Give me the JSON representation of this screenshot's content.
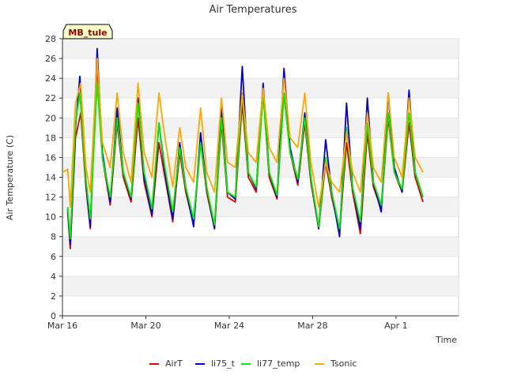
{
  "chart_data": {
    "type": "line",
    "title": "Air Temperatures",
    "xlabel": "Time",
    "ylabel": "Air Temperature (C)",
    "site_label": "MB_tule",
    "ylim": [
      0,
      28
    ],
    "yticks": [
      0,
      2,
      4,
      6,
      8,
      10,
      12,
      14,
      16,
      18,
      20,
      22,
      24,
      26,
      28
    ],
    "xlim": [
      "2024-03-16",
      "2024-04-04"
    ],
    "xticks": [
      {
        "date": "2024-03-16",
        "label": "Mar 16"
      },
      {
        "date": "2024-03-20",
        "label": "Mar 20"
      },
      {
        "date": "2024-03-24",
        "label": "Mar 24"
      },
      {
        "date": "2024-03-28",
        "label": "Mar 28"
      },
      {
        "date": "2024-04-01",
        "label": "Apr 1"
      }
    ],
    "grid": "horizontal bands",
    "legend_position": "bottom",
    "series": [
      {
        "name": "AirT",
        "color": "#dd0000",
        "points": [
          [
            "2024-03-16 06:00",
            10.5
          ],
          [
            "2024-03-16 09:00",
            6.8
          ],
          [
            "2024-03-16 15:00",
            18.0
          ],
          [
            "2024-03-16 21:00",
            20.5
          ],
          [
            "2024-03-17 03:00",
            13.0
          ],
          [
            "2024-03-17 08:00",
            8.8
          ],
          [
            "2024-03-17 16:00",
            25.5
          ],
          [
            "2024-03-17 22:00",
            16.0
          ],
          [
            "2024-03-18 07:00",
            11.2
          ],
          [
            "2024-03-18 15:00",
            19.5
          ],
          [
            "2024-03-18 22:00",
            14.0
          ],
          [
            "2024-03-19 07:00",
            11.5
          ],
          [
            "2024-03-19 15:00",
            20.0
          ],
          [
            "2024-03-19 22:00",
            13.5
          ],
          [
            "2024-03-20 07:00",
            10.0
          ],
          [
            "2024-03-20 15:00",
            17.5
          ],
          [
            "2024-03-20 22:00",
            14.0
          ],
          [
            "2024-03-21 07:00",
            9.5
          ],
          [
            "2024-03-21 15:00",
            16.5
          ],
          [
            "2024-03-21 22:00",
            12.5
          ],
          [
            "2024-03-22 07:00",
            9.2
          ],
          [
            "2024-03-22 15:00",
            17.5
          ],
          [
            "2024-03-22 22:00",
            12.5
          ],
          [
            "2024-03-23 07:00",
            8.8
          ],
          [
            "2024-03-23 15:00",
            19.5
          ],
          [
            "2024-03-23 22:00",
            12.0
          ],
          [
            "2024-03-24 07:00",
            11.5
          ],
          [
            "2024-03-24 15:00",
            21.5
          ],
          [
            "2024-03-24 22:00",
            14.0
          ],
          [
            "2024-03-25 07:00",
            12.5
          ],
          [
            "2024-03-25 15:00",
            22.5
          ],
          [
            "2024-03-25 22:00",
            14.0
          ],
          [
            "2024-03-26 07:00",
            11.8
          ],
          [
            "2024-03-26 15:00",
            22.5
          ],
          [
            "2024-03-26 22:00",
            16.5
          ],
          [
            "2024-03-27 07:00",
            13.2
          ],
          [
            "2024-03-27 15:00",
            19.5
          ],
          [
            "2024-03-27 22:00",
            13.5
          ],
          [
            "2024-03-28 07:00",
            8.8
          ],
          [
            "2024-03-28 15:00",
            15.5
          ],
          [
            "2024-03-28 22:00",
            12.0
          ],
          [
            "2024-03-29 07:00",
            8.5
          ],
          [
            "2024-03-29 15:00",
            17.5
          ],
          [
            "2024-03-29 22:00",
            12.5
          ],
          [
            "2024-03-30 07:00",
            8.3
          ],
          [
            "2024-03-30 15:00",
            18.5
          ],
          [
            "2024-03-30 22:00",
            13.0
          ],
          [
            "2024-03-31 07:00",
            10.8
          ],
          [
            "2024-03-31 15:00",
            20.0
          ],
          [
            "2024-03-31 22:00",
            14.5
          ],
          [
            "2024-04-01 07:00",
            12.5
          ],
          [
            "2024-04-01 15:00",
            19.5
          ],
          [
            "2024-04-01 22:00",
            14.0
          ],
          [
            "2024-04-02 07:00",
            11.5
          ]
        ]
      },
      {
        "name": "li75_t",
        "color": "#0000cc",
        "points": [
          [
            "2024-03-16 06:00",
            10.8
          ],
          [
            "2024-03-16 09:00",
            7.2
          ],
          [
            "2024-03-16 15:00",
            19.0
          ],
          [
            "2024-03-16 20:00",
            24.2
          ],
          [
            "2024-03-17 03:00",
            13.5
          ],
          [
            "2024-03-17 08:00",
            9.0
          ],
          [
            "2024-03-17 16:00",
            27.0
          ],
          [
            "2024-03-17 22:00",
            16.5
          ],
          [
            "2024-03-18 07:00",
            11.5
          ],
          [
            "2024-03-18 15:00",
            21.0
          ],
          [
            "2024-03-18 22:00",
            14.5
          ],
          [
            "2024-03-19 07:00",
            11.8
          ],
          [
            "2024-03-19 15:00",
            22.0
          ],
          [
            "2024-03-19 22:00",
            14.0
          ],
          [
            "2024-03-20 07:00",
            10.2
          ],
          [
            "2024-03-20 15:00",
            19.5
          ],
          [
            "2024-03-20 22:00",
            14.5
          ],
          [
            "2024-03-21 07:00",
            9.8
          ],
          [
            "2024-03-21 15:00",
            17.5
          ],
          [
            "2024-03-21 22:00",
            13.0
          ],
          [
            "2024-03-22 07:00",
            9.0
          ],
          [
            "2024-03-22 15:00",
            18.5
          ],
          [
            "2024-03-22 22:00",
            13.0
          ],
          [
            "2024-03-23 07:00",
            8.8
          ],
          [
            "2024-03-23 15:00",
            21.0
          ],
          [
            "2024-03-23 22:00",
            12.5
          ],
          [
            "2024-03-24 07:00",
            11.8
          ],
          [
            "2024-03-24 15:00",
            25.2
          ],
          [
            "2024-03-24 22:00",
            14.5
          ],
          [
            "2024-03-25 07:00",
            12.8
          ],
          [
            "2024-03-25 15:00",
            23.5
          ],
          [
            "2024-03-25 22:00",
            14.5
          ],
          [
            "2024-03-26 07:00",
            12.0
          ],
          [
            "2024-03-26 15:00",
            25.0
          ],
          [
            "2024-03-26 22:00",
            17.0
          ],
          [
            "2024-03-27 07:00",
            13.5
          ],
          [
            "2024-03-27 15:00",
            20.5
          ],
          [
            "2024-03-27 22:00",
            14.0
          ],
          [
            "2024-03-28 07:00",
            8.8
          ],
          [
            "2024-03-28 15:00",
            17.8
          ],
          [
            "2024-03-28 22:00",
            12.5
          ],
          [
            "2024-03-29 07:00",
            8.0
          ],
          [
            "2024-03-29 15:00",
            21.5
          ],
          [
            "2024-03-29 22:00",
            13.0
          ],
          [
            "2024-03-30 07:00",
            8.8
          ],
          [
            "2024-03-30 15:00",
            22.0
          ],
          [
            "2024-03-30 22:00",
            13.5
          ],
          [
            "2024-03-31 07:00",
            10.5
          ],
          [
            "2024-03-31 15:00",
            22.5
          ],
          [
            "2024-03-31 22:00",
            15.0
          ],
          [
            "2024-04-01 07:00",
            12.5
          ],
          [
            "2024-04-01 15:00",
            22.8
          ],
          [
            "2024-04-01 22:00",
            14.5
          ],
          [
            "2024-04-02 07:00",
            12.0
          ]
        ]
      },
      {
        "name": "li77_temp",
        "color": "#00ee00",
        "points": [
          [
            "2024-03-16 06:00",
            11.0
          ],
          [
            "2024-03-16 09:00",
            7.8
          ],
          [
            "2024-03-16 15:00",
            19.5
          ],
          [
            "2024-03-16 20:00",
            22.5
          ],
          [
            "2024-03-17 03:00",
            13.8
          ],
          [
            "2024-03-17 08:00",
            9.8
          ],
          [
            "2024-03-17 16:00",
            23.5
          ],
          [
            "2024-03-17 22:00",
            16.0
          ],
          [
            "2024-03-18 07:00",
            12.0
          ],
          [
            "2024-03-18 15:00",
            20.0
          ],
          [
            "2024-03-18 22:00",
            14.5
          ],
          [
            "2024-03-19 07:00",
            12.0
          ],
          [
            "2024-03-19 15:00",
            21.5
          ],
          [
            "2024-03-19 22:00",
            14.5
          ],
          [
            "2024-03-20 07:00",
            10.8
          ],
          [
            "2024-03-20 15:00",
            19.5
          ],
          [
            "2024-03-20 22:00",
            15.0
          ],
          [
            "2024-03-21 07:00",
            10.5
          ],
          [
            "2024-03-21 15:00",
            17.0
          ],
          [
            "2024-03-21 22:00",
            13.0
          ],
          [
            "2024-03-22 07:00",
            9.8
          ],
          [
            "2024-03-22 15:00",
            17.5
          ],
          [
            "2024-03-22 22:00",
            13.0
          ],
          [
            "2024-03-23 07:00",
            9.2
          ],
          [
            "2024-03-23 15:00",
            20.0
          ],
          [
            "2024-03-23 22:00",
            12.5
          ],
          [
            "2024-03-24 07:00",
            12.0
          ],
          [
            "2024-03-24 15:00",
            22.5
          ],
          [
            "2024-03-24 22:00",
            14.5
          ],
          [
            "2024-03-25 07:00",
            13.0
          ],
          [
            "2024-03-25 15:00",
            22.5
          ],
          [
            "2024-03-25 22:00",
            14.5
          ],
          [
            "2024-03-26 07:00",
            12.2
          ],
          [
            "2024-03-26 15:00",
            22.5
          ],
          [
            "2024-03-26 22:00",
            16.5
          ],
          [
            "2024-03-27 07:00",
            13.8
          ],
          [
            "2024-03-27 15:00",
            20.0
          ],
          [
            "2024-03-27 22:00",
            14.0
          ],
          [
            "2024-03-28 07:00",
            9.0
          ],
          [
            "2024-03-28 15:00",
            16.0
          ],
          [
            "2024-03-28 22:00",
            12.5
          ],
          [
            "2024-03-29 07:00",
            8.8
          ],
          [
            "2024-03-29 15:00",
            19.0
          ],
          [
            "2024-03-29 22:00",
            13.0
          ],
          [
            "2024-03-30 07:00",
            9.5
          ],
          [
            "2024-03-30 15:00",
            19.5
          ],
          [
            "2024-03-30 22:00",
            13.5
          ],
          [
            "2024-03-31 07:00",
            11.2
          ],
          [
            "2024-03-31 15:00",
            20.5
          ],
          [
            "2024-03-31 22:00",
            14.5
          ],
          [
            "2024-04-01 07:00",
            12.8
          ],
          [
            "2024-04-01 15:00",
            20.5
          ],
          [
            "2024-04-01 22:00",
            14.5
          ],
          [
            "2024-04-02 07:00",
            12.0
          ]
        ]
      },
      {
        "name": "Tsonic",
        "color": "#ffa500",
        "points": [
          [
            "2024-03-16 00:00",
            14.5
          ],
          [
            "2024-03-16 06:00",
            14.8
          ],
          [
            "2024-03-16 09:00",
            11.0
          ],
          [
            "2024-03-16 15:00",
            21.5
          ],
          [
            "2024-03-16 21:00",
            23.5
          ],
          [
            "2024-03-17 03:00",
            15.0
          ],
          [
            "2024-03-17 08:00",
            12.5
          ],
          [
            "2024-03-17 16:00",
            26.0
          ],
          [
            "2024-03-17 22:00",
            17.5
          ],
          [
            "2024-03-18 07:00",
            15.0
          ],
          [
            "2024-03-18 15:00",
            22.5
          ],
          [
            "2024-03-18 22:00",
            16.5
          ],
          [
            "2024-03-19 07:00",
            13.5
          ],
          [
            "2024-03-19 15:00",
            23.5
          ],
          [
            "2024-03-19 22:00",
            16.5
          ],
          [
            "2024-03-20 07:00",
            14.0
          ],
          [
            "2024-03-20 15:00",
            22.5
          ],
          [
            "2024-03-20 22:00",
            18.0
          ],
          [
            "2024-03-21 07:00",
            13.0
          ],
          [
            "2024-03-21 15:00",
            19.0
          ],
          [
            "2024-03-21 22:00",
            15.0
          ],
          [
            "2024-03-22 07:00",
            13.5
          ],
          [
            "2024-03-22 15:00",
            21.0
          ],
          [
            "2024-03-22 22:00",
            14.5
          ],
          [
            "2024-03-23 07:00",
            12.5
          ],
          [
            "2024-03-23 15:00",
            22.0
          ],
          [
            "2024-03-23 22:00",
            15.5
          ],
          [
            "2024-03-24 07:00",
            15.0
          ],
          [
            "2024-03-24 15:00",
            22.5
          ],
          [
            "2024-03-24 22:00",
            16.5
          ],
          [
            "2024-03-25 07:00",
            15.5
          ],
          [
            "2024-03-25 15:00",
            23.0
          ],
          [
            "2024-03-25 22:00",
            17.0
          ],
          [
            "2024-03-26 07:00",
            15.5
          ],
          [
            "2024-03-26 15:00",
            24.0
          ],
          [
            "2024-03-26 22:00",
            18.0
          ],
          [
            "2024-03-27 07:00",
            17.0
          ],
          [
            "2024-03-27 15:00",
            22.5
          ],
          [
            "2024-03-27 22:00",
            15.5
          ],
          [
            "2024-03-28 07:00",
            11.0
          ],
          [
            "2024-03-28 15:00",
            15.5
          ],
          [
            "2024-03-28 22:00",
            13.5
          ],
          [
            "2024-03-29 07:00",
            12.5
          ],
          [
            "2024-03-29 15:00",
            18.5
          ],
          [
            "2024-03-29 22:00",
            14.5
          ],
          [
            "2024-03-30 07:00",
            12.5
          ],
          [
            "2024-03-30 15:00",
            20.5
          ],
          [
            "2024-03-30 22:00",
            15.0
          ],
          [
            "2024-03-31 07:00",
            13.5
          ],
          [
            "2024-03-31 15:00",
            22.5
          ],
          [
            "2024-03-31 22:00",
            16.0
          ],
          [
            "2024-04-01 07:00",
            14.0
          ],
          [
            "2024-04-01 15:00",
            22.0
          ],
          [
            "2024-04-01 22:00",
            16.0
          ],
          [
            "2024-04-02 07:00",
            14.5
          ]
        ]
      }
    ]
  },
  "colors": {
    "band": "#f2f2f2",
    "grid_line": "#e2e2e2",
    "axis": "#333333",
    "badge_fill": "#ffffcc",
    "badge_text": "#8b0000"
  }
}
